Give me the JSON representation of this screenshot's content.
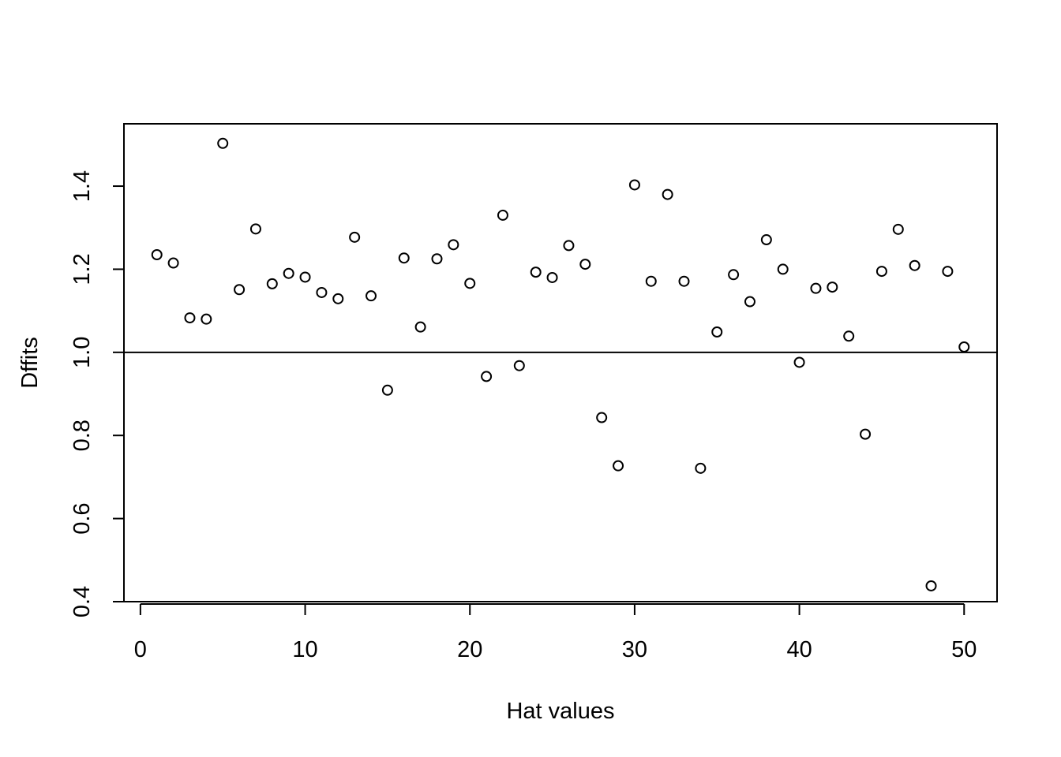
{
  "chart_data": {
    "type": "scatter",
    "title": "",
    "xlabel": "Hat values",
    "ylabel": "Dffits",
    "xlim": [
      -1,
      52
    ],
    "ylim": [
      0.4,
      1.55
    ],
    "x_ticks": [
      0,
      10,
      20,
      30,
      40,
      50
    ],
    "x_tick_labels": [
      "0",
      "10",
      "20",
      "30",
      "40",
      "50"
    ],
    "y_ticks": [
      0.4,
      0.6,
      0.8,
      1.0,
      1.2,
      1.4
    ],
    "y_tick_labels": [
      "0.4",
      "0.6",
      "0.8",
      "1.0",
      "1.2",
      "1.4"
    ],
    "grid": false,
    "reference_line": {
      "orientation": "horizontal",
      "y": 1.0
    },
    "series": [
      {
        "marker": "open-circle",
        "color": "#000000",
        "x": [
          1,
          2,
          3,
          4,
          5,
          6,
          7,
          8,
          9,
          10,
          11,
          12,
          13,
          14,
          15,
          16,
          17,
          18,
          19,
          20,
          21,
          22,
          23,
          24,
          25,
          26,
          27,
          28,
          29,
          30,
          31,
          32,
          33,
          34,
          35,
          36,
          37,
          38,
          39,
          40,
          41,
          42,
          43,
          44,
          45,
          46,
          47,
          48,
          49,
          50
        ],
        "y": [
          1.235,
          1.215,
          1.083,
          1.08,
          1.503,
          1.151,
          1.297,
          1.165,
          1.19,
          1.181,
          1.144,
          1.129,
          1.277,
          1.136,
          0.909,
          1.227,
          1.061,
          1.225,
          1.259,
          1.166,
          0.942,
          1.33,
          0.968,
          1.193,
          1.18,
          1.257,
          1.212,
          0.843,
          0.727,
          1.403,
          1.171,
          1.38,
          1.171,
          0.721,
          1.049,
          1.187,
          1.122,
          1.271,
          1.2,
          0.976,
          1.154,
          1.157,
          1.039,
          0.803,
          1.195,
          1.296,
          1.209,
          0.438,
          1.195,
          1.013
        ]
      }
    ]
  }
}
